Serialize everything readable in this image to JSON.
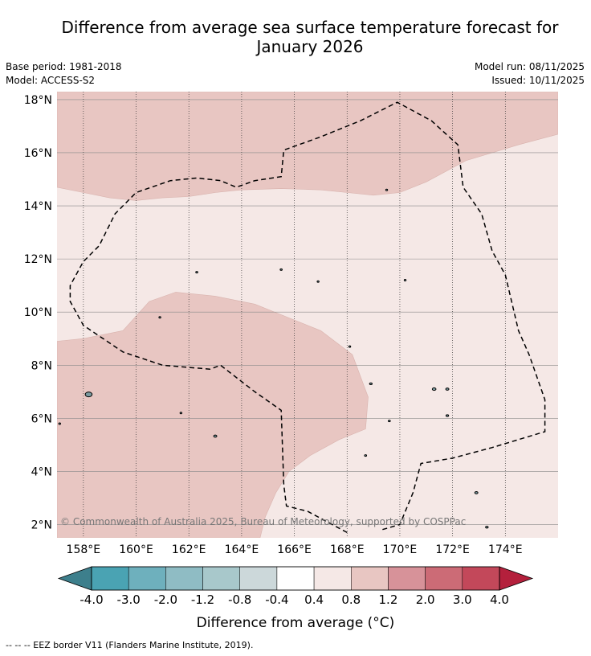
{
  "title_line1": "Difference from average sea surface temperature forecast for",
  "title_line2": "January 2026",
  "meta": {
    "base_period": "Base period: 1981-2018",
    "model": "Model: ACCESS-S2",
    "model_run": "Model run: 08/11/2025",
    "issued": "Issued: 10/11/2025"
  },
  "map": {
    "lon_range": [
      157,
      176
    ],
    "lat_range": [
      1.5,
      18.3
    ],
    "lat_ticks": [
      {
        "value": 18,
        "label": "18°N"
      },
      {
        "value": 16,
        "label": "16°N"
      },
      {
        "value": 14,
        "label": "14°N"
      },
      {
        "value": 12,
        "label": "12°N"
      },
      {
        "value": 10,
        "label": "10°N"
      },
      {
        "value": 8,
        "label": "8°N"
      },
      {
        "value": 6,
        "label": "6°N"
      },
      {
        "value": 4,
        "label": "4°N"
      },
      {
        "value": 2,
        "label": "2°N"
      }
    ],
    "lon_ticks": [
      {
        "value": 158,
        "label": "158°E"
      },
      {
        "value": 160,
        "label": "160°E"
      },
      {
        "value": 162,
        "label": "162°E"
      },
      {
        "value": 164,
        "label": "164°E"
      },
      {
        "value": 166,
        "label": "166°E"
      },
      {
        "value": 168,
        "label": "168°E"
      },
      {
        "value": 170,
        "label": "170°E"
      },
      {
        "value": 172,
        "label": "172°E"
      },
      {
        "value": 174,
        "label": "174°E"
      }
    ],
    "regions": [
      {
        "name": "anomaly-0.8-to-1.2-north",
        "color": "#e8c6c2",
        "points": [
          [
            157,
            18.3
          ],
          [
            176,
            18.3
          ],
          [
            176,
            16.7
          ],
          [
            174.5,
            16.3
          ],
          [
            172.5,
            15.7
          ],
          [
            171,
            14.9
          ],
          [
            170,
            14.5
          ],
          [
            169,
            14.4
          ],
          [
            168,
            14.5
          ],
          [
            167,
            14.6
          ],
          [
            165.5,
            14.65
          ],
          [
            164,
            14.6
          ],
          [
            163,
            14.5
          ],
          [
            162,
            14.35
          ],
          [
            161,
            14.3
          ],
          [
            160,
            14.2
          ],
          [
            159,
            14.3
          ],
          [
            158,
            14.5
          ],
          [
            157,
            14.7
          ]
        ]
      },
      {
        "name": "anomaly-0.8-to-1.2-south",
        "color": "#e8c6c2",
        "points": [
          [
            157,
            8.9
          ],
          [
            158,
            9.0
          ],
          [
            159.5,
            9.3
          ],
          [
            160.5,
            10.4
          ],
          [
            161.5,
            10.75
          ],
          [
            163,
            10.6
          ],
          [
            164.5,
            10.3
          ],
          [
            165.5,
            9.9
          ],
          [
            167,
            9.3
          ],
          [
            168.2,
            8.4
          ],
          [
            168.8,
            6.8
          ],
          [
            168.7,
            5.6
          ],
          [
            167.7,
            5.2
          ],
          [
            166.6,
            4.6
          ],
          [
            165.8,
            4.0
          ],
          [
            165.3,
            3.2
          ],
          [
            164.9,
            2.3
          ],
          [
            164.7,
            1.5
          ],
          [
            157,
            1.5
          ]
        ]
      }
    ],
    "eez_border": [
      [
        168,
        1.7
      ],
      [
        166.5,
        2.5
      ],
      [
        165.7,
        2.7
      ],
      [
        165.6,
        3.5
      ],
      [
        165.5,
        6.3
      ],
      [
        164.5,
        7.0
      ],
      [
        163.2,
        8.0
      ],
      [
        162.8,
        7.85
      ],
      [
        161,
        8.0
      ],
      [
        159.5,
        8.5
      ],
      [
        158,
        9.5
      ],
      [
        157.5,
        10.4
      ],
      [
        157.5,
        11.0
      ],
      [
        158,
        11.9
      ],
      [
        158.6,
        12.5
      ],
      [
        159.2,
        13.7
      ],
      [
        160,
        14.5
      ],
      [
        161.3,
        14.95
      ],
      [
        162.3,
        15.05
      ],
      [
        163.2,
        14.95
      ],
      [
        163.8,
        14.7
      ],
      [
        164.5,
        14.95
      ],
      [
        165.5,
        15.1
      ],
      [
        165.6,
        16.1
      ],
      [
        167,
        16.6
      ],
      [
        168.5,
        17.2
      ],
      [
        169.9,
        17.9
      ],
      [
        171.2,
        17.2
      ],
      [
        172.2,
        16.3
      ],
      [
        172.4,
        14.7
      ],
      [
        173.1,
        13.7
      ],
      [
        173.5,
        12.3
      ],
      [
        174,
        11.4
      ],
      [
        174.5,
        9.3
      ],
      [
        174.9,
        8.4
      ],
      [
        175.5,
        6.7
      ],
      [
        175.5,
        5.5
      ],
      [
        173.5,
        4.9
      ],
      [
        172,
        4.5
      ],
      [
        170.8,
        4.3
      ],
      [
        170.5,
        3.2
      ],
      [
        170,
        2.0
      ],
      [
        169.3,
        1.8
      ]
    ],
    "islands": [
      {
        "name": "island-a",
        "lon": 158.2,
        "lat": 6.9,
        "r": 0.13
      },
      {
        "name": "island-b",
        "lon": 163.0,
        "lat": 5.33,
        "r": 0.06
      },
      {
        "name": "island-c",
        "lon": 162.3,
        "lat": 11.5,
        "r": 0.04
      },
      {
        "name": "island-d",
        "lon": 165.5,
        "lat": 11.6,
        "r": 0.04
      },
      {
        "name": "island-e",
        "lon": 166.9,
        "lat": 11.15,
        "r": 0.03
      },
      {
        "name": "island-f",
        "lon": 168.9,
        "lat": 7.3,
        "r": 0.05
      },
      {
        "name": "island-g",
        "lon": 169.6,
        "lat": 5.9,
        "r": 0.04
      },
      {
        "name": "island-h",
        "lon": 168.7,
        "lat": 4.6,
        "r": 0.04
      },
      {
        "name": "island-i",
        "lon": 171.3,
        "lat": 7.1,
        "r": 0.07
      },
      {
        "name": "island-j",
        "lon": 171.8,
        "lat": 7.1,
        "r": 0.06
      },
      {
        "name": "island-k",
        "lon": 171.8,
        "lat": 6.1,
        "r": 0.05
      },
      {
        "name": "island-l",
        "lon": 172.9,
        "lat": 3.2,
        "r": 0.06
      },
      {
        "name": "island-m",
        "lon": 173.3,
        "lat": 1.9,
        "r": 0.05
      },
      {
        "name": "island-n",
        "lon": 169.5,
        "lat": 14.6,
        "r": 0.03
      },
      {
        "name": "island-o",
        "lon": 160.9,
        "lat": 9.8,
        "r": 0.02
      },
      {
        "name": "island-p",
        "lon": 170.2,
        "lat": 11.2,
        "r": 0.02
      },
      {
        "name": "island-q",
        "lon": 168.1,
        "lat": 8.7,
        "r": 0.02
      },
      {
        "name": "island-r",
        "lon": 161.7,
        "lat": 6.2,
        "r": 0.02
      },
      {
        "name": "island-s",
        "lon": 157.1,
        "lat": 5.8,
        "r": 0.02
      }
    ],
    "copyright": "© Commonwealth of Australia 2025, Bureau of Meteorology, supported by COSPPac"
  },
  "colorbar": {
    "colors": [
      "#4aa3b3",
      "#6eb0bd",
      "#8fbcc4",
      "#a8c8cb",
      "#ccd8da",
      "#ffffff",
      "#f5e8e6",
      "#e8c6c2",
      "#d79299",
      "#cc6b76",
      "#c3485a"
    ],
    "below_color": "#3d7f8c",
    "above_color": "#b4203c",
    "tick_labels": [
      "-4.0",
      "-3.0",
      "-2.0",
      "-1.2",
      "-0.8",
      "-0.4",
      "0.4",
      "0.8",
      "1.2",
      "2.0",
      "3.0",
      "4.0"
    ],
    "label": "Difference from average (°C)"
  },
  "footnote": "--  --  -- EEZ border V11 (Flanders Marine Institute, 2019)."
}
